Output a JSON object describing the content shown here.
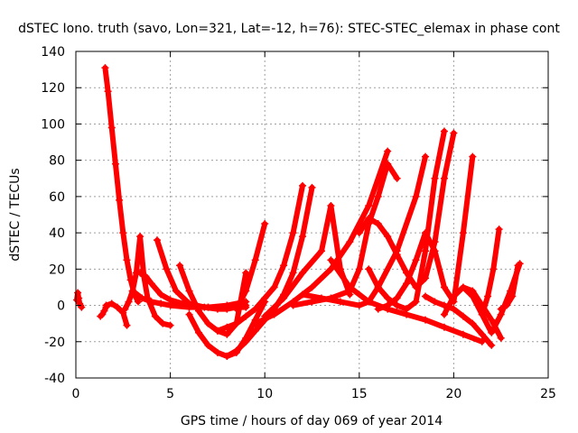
{
  "chart_data": {
    "type": "scatter",
    "title": "dSTEC Iono. truth (savo, Lon=321, Lat=-12, h=76): STEC-STEC_elemax in phase cont",
    "xlabel": "GPS time / hours of day 069 of year 2014",
    "ylabel": "dSTEC  / TECUs",
    "xlim": [
      0,
      25
    ],
    "ylim": [
      -40,
      140
    ],
    "x_ticks": [
      0,
      5,
      10,
      15,
      20,
      25
    ],
    "y_ticks": [
      -40,
      -20,
      0,
      20,
      40,
      60,
      80,
      100,
      120,
      140
    ],
    "x_tick_labels": [
      "0",
      "5",
      "10",
      "15",
      "20",
      "25"
    ],
    "y_tick_labels": [
      "-40",
      "-20",
      "0",
      "20",
      "40",
      "60",
      "80",
      "100",
      "120",
      "140"
    ],
    "grid": true,
    "marker": "+",
    "color": "#ff0000",
    "series": [
      {
        "x": [
          0.05,
          0.1,
          0.15,
          0.2,
          0.25,
          0.3
        ],
        "y": [
          3,
          7,
          4,
          1,
          0,
          -1
        ]
      },
      {
        "x": [
          1.3,
          1.4,
          1.5,
          1.6
        ],
        "y": [
          -6,
          -5,
          -3,
          -1
        ]
      },
      {
        "x": [
          1.55,
          1.7,
          1.9,
          2.1,
          2.3,
          2.5,
          2.7,
          2.9,
          3.1,
          3.3
        ],
        "y": [
          131,
          118,
          98,
          78,
          58,
          40,
          25,
          14,
          6,
          2
        ]
      },
      {
        "x": [
          1.6,
          1.9,
          2.2,
          2.5,
          2.7
        ],
        "y": [
          0,
          1,
          -1,
          -4,
          -11
        ]
      },
      {
        "x": [
          2.6,
          2.8,
          3.0,
          3.2,
          3.4,
          3.6,
          3.8,
          4.2,
          4.6,
          5.0
        ],
        "y": [
          -2,
          2,
          8,
          18,
          38,
          16,
          4,
          -6,
          -10,
          -11
        ]
      },
      {
        "x": [
          3.0,
          3.5,
          4.0,
          4.5,
          5.0,
          6.0,
          7.0,
          8.0,
          9.0
        ],
        "y": [
          8,
          4,
          2,
          1,
          0,
          -1,
          -1,
          0,
          2
        ]
      },
      {
        "x": [
          3.4,
          3.7,
          4.0,
          4.5,
          5.0,
          6.0,
          7.0,
          8.0,
          9.0
        ],
        "y": [
          18,
          16,
          12,
          6,
          3,
          0,
          -1,
          -1,
          -1
        ]
      },
      {
        "x": [
          4.3,
          4.8,
          5.3,
          6.0,
          6.8,
          7.5,
          8.0,
          8.5,
          9.0
        ],
        "y": [
          36,
          20,
          8,
          1,
          -1,
          -2,
          -2,
          -1,
          0
        ]
      },
      {
        "x": [
          5.5,
          6.0,
          6.5,
          7.0,
          7.5,
          8.0,
          8.5,
          9.0
        ],
        "y": [
          22,
          8,
          -3,
          -10,
          -14,
          -16,
          -10,
          18
        ]
      },
      {
        "x": [
          6.0,
          6.5,
          7.0,
          7.5,
          8.0,
          8.5,
          9.0,
          9.5,
          10.0
        ],
        "y": [
          -5,
          -15,
          -22,
          -26,
          -28,
          -26,
          -18,
          -8,
          2
        ]
      },
      {
        "x": [
          7.5,
          8.0,
          8.5,
          9.0,
          9.5,
          10.0,
          10.5,
          11.0,
          11.5,
          12.0
        ],
        "y": [
          -14,
          -12,
          -10,
          -6,
          -2,
          4,
          10,
          22,
          40,
          66
        ]
      },
      {
        "x": [
          8.0,
          8.5,
          9.0,
          9.5,
          10.0,
          10.5,
          11.0,
          11.5,
          12.0,
          12.5
        ],
        "y": [
          -28,
          -25,
          -20,
          -14,
          -8,
          -2,
          6,
          18,
          38,
          65
        ]
      },
      {
        "x": [
          8.5,
          9.0,
          9.5,
          10.0
        ],
        "y": [
          -2,
          8,
          25,
          45
        ]
      },
      {
        "x": [
          9.5,
          10.5,
          11.5,
          12.5,
          13.5,
          14.5,
          15.5,
          16.5
        ],
        "y": [
          -10,
          -5,
          2,
          10,
          20,
          35,
          55,
          85
        ]
      },
      {
        "x": [
          10.0,
          11.0,
          12.0,
          13.0,
          13.5,
          14.0,
          14.5
        ],
        "y": [
          -6,
          4,
          18,
          30,
          55,
          20,
          6
        ]
      },
      {
        "x": [
          11.5,
          12.5,
          13.5,
          14.5,
          15.0,
          15.5,
          16.0,
          16.5,
          17.0
        ],
        "y": [
          0,
          2,
          4,
          8,
          20,
          45,
          60,
          78,
          70
        ]
      },
      {
        "x": [
          12.0,
          13.0,
          14.0,
          15.0,
          15.5,
          16.0,
          17.0,
          18.0,
          18.5
        ],
        "y": [
          6,
          4,
          2,
          0,
          2,
          10,
          30,
          60,
          82
        ]
      },
      {
        "x": [
          13.5,
          14.5,
          15.5,
          16.5,
          17.5,
          18.5,
          19.5,
          20.5,
          21.5
        ],
        "y": [
          25,
          10,
          2,
          -2,
          -5,
          -8,
          -12,
          -16,
          -20
        ]
      },
      {
        "x": [
          15.0,
          15.5,
          16.0,
          16.5,
          17.0,
          17.5,
          18.0,
          18.5,
          19.0,
          19.5,
          20.0
        ],
        "y": [
          40,
          48,
          45,
          38,
          28,
          18,
          10,
          15,
          35,
          70,
          95
        ]
      },
      {
        "x": [
          15.5,
          16.0,
          16.5,
          17.0,
          17.5,
          18.0,
          18.5,
          19.0,
          19.5
        ],
        "y": [
          20,
          10,
          4,
          0,
          -2,
          2,
          30,
          70,
          96
        ]
      },
      {
        "x": [
          16.0,
          16.5,
          17.0,
          17.5,
          18.0,
          18.5,
          19.0,
          19.5,
          20.0,
          20.5,
          21.0
        ],
        "y": [
          -2,
          0,
          4,
          12,
          25,
          40,
          30,
          10,
          2,
          40,
          82
        ]
      },
      {
        "x": [
          18.5,
          19.0,
          19.5,
          20.0,
          20.5,
          21.0,
          21.5,
          22.0
        ],
        "y": [
          5,
          2,
          0,
          -2,
          -6,
          -10,
          -16,
          -22
        ]
      },
      {
        "x": [
          19.5,
          20.0,
          20.5,
          21.0,
          21.5,
          22.0,
          22.5
        ],
        "y": [
          -5,
          5,
          10,
          8,
          0,
          -8,
          -18
        ]
      },
      {
        "x": [
          20.5,
          21.0,
          21.5,
          22.0,
          22.5,
          23.0,
          23.5
        ],
        "y": [
          10,
          5,
          -5,
          -15,
          -5,
          8,
          23
        ]
      },
      {
        "x": [
          21.5,
          21.8,
          22.1,
          22.4
        ],
        "y": [
          -5,
          5,
          20,
          42
        ]
      },
      {
        "x": [
          22.5,
          22.8,
          23.1,
          23.4
        ],
        "y": [
          -2,
          0,
          5,
          22
        ]
      }
    ]
  }
}
